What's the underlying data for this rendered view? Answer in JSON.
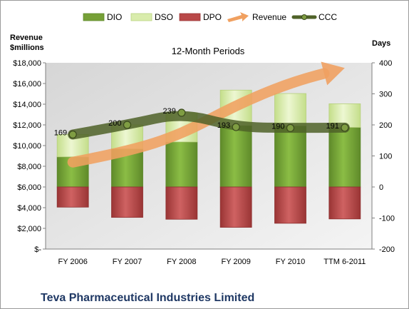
{
  "chart_data": {
    "type": "bar",
    "subtitle": "12-Month Periods",
    "footer_title": "Teva Pharmaceutical Industries Limited",
    "ylabel_left": "Revenue\n$millions",
    "ylabel_right": "Days",
    "legend_position": "top",
    "categories": [
      "FY 2006",
      "FY 2007",
      "FY 2008",
      "FY 2009",
      "FY 2010",
      "TTM 6-2011"
    ],
    "left_axis": {
      "min": 0,
      "max": 18000,
      "step": 2000,
      "tick_labels": [
        "$-",
        "$2,000",
        "$4,000",
        "$6,000",
        "$8,000",
        "$10,000",
        "$12,000",
        "$14,000",
        "$16,000",
        "$18,000"
      ]
    },
    "right_axis": {
      "min": -200,
      "max": 400,
      "step": 100,
      "tick_labels": [
        "-200",
        "-100",
        "0",
        "100",
        "200",
        "300",
        "400"
      ]
    },
    "series": [
      {
        "name": "DIO",
        "axis": "right",
        "kind": "stacked_bar",
        "color": "#76a037",
        "values": [
          97,
          123,
          145,
          198,
          197,
          192
        ]
      },
      {
        "name": "DSO",
        "axis": "right",
        "kind": "stacked_bar",
        "color": "#d9ecac",
        "values": [
          72,
          77,
          94,
          114,
          104,
          76
        ]
      },
      {
        "name": "DPO",
        "axis": "right",
        "kind": "stacked_bar_negative",
        "color": "#b94848",
        "values": [
          -65,
          -98,
          -104,
          -130,
          -117,
          -103
        ]
      },
      {
        "name": "Revenue",
        "axis": "left",
        "kind": "arrow_trend",
        "color": "#f0a060",
        "values": [
          8400,
          9400,
          11100,
          13900,
          16100,
          17500
        ]
      },
      {
        "name": "CCC",
        "axis": "right",
        "kind": "line",
        "color": "#4f6228",
        "values": [
          169,
          200,
          239,
          193,
          190,
          191
        ]
      }
    ],
    "data_labels": [
      "169",
      "200",
      "239",
      "193",
      "190",
      "191"
    ],
    "colors": {
      "plot_background": "#c9c9c9",
      "dio": "#76a037",
      "dso": "#d9ecac",
      "dpo": "#b94848",
      "revenue": "#f0a060",
      "ccc": "#4f6228",
      "footer_text": "#1f3864"
    }
  }
}
